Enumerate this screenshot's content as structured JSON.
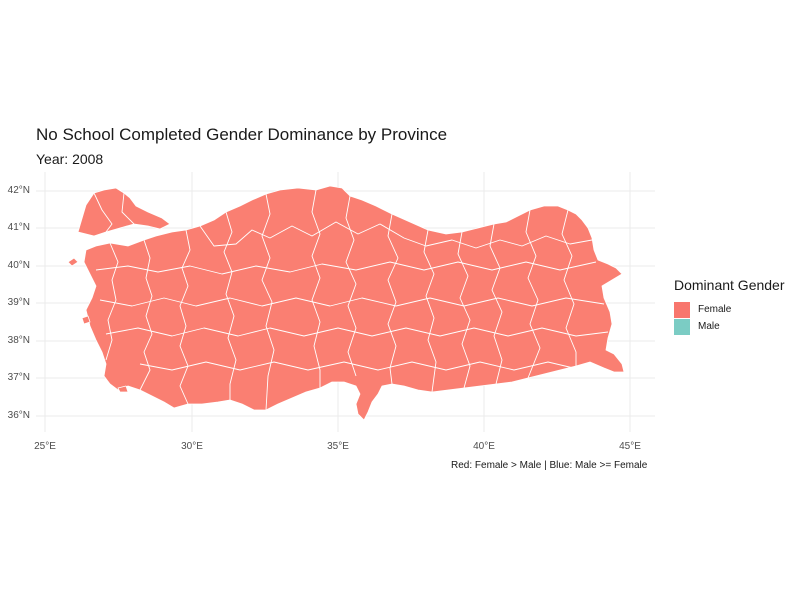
{
  "title": "No School Completed Gender Dominance by Province",
  "subtitle": "Year: 2008",
  "caption": "Red: Female > Male | Blue: Male >= Female",
  "axes": {
    "y_ticks": [
      "42°N",
      "41°N",
      "40°N",
      "39°N",
      "38°N",
      "37°N",
      "36°N"
    ],
    "x_ticks": [
      "25°E",
      "30°E",
      "35°E",
      "40°E",
      "45°E"
    ]
  },
  "legend": {
    "title": "Dominant Gender",
    "items": [
      {
        "label": "Female",
        "color": "#F8766D"
      },
      {
        "label": "Male",
        "color": "#7BCCC4"
      }
    ]
  },
  "map": {
    "region": "Turkey provinces",
    "fill_all": "#FA7F72",
    "border_color": "#ffffff",
    "grid_color": "#ebebeb"
  }
}
